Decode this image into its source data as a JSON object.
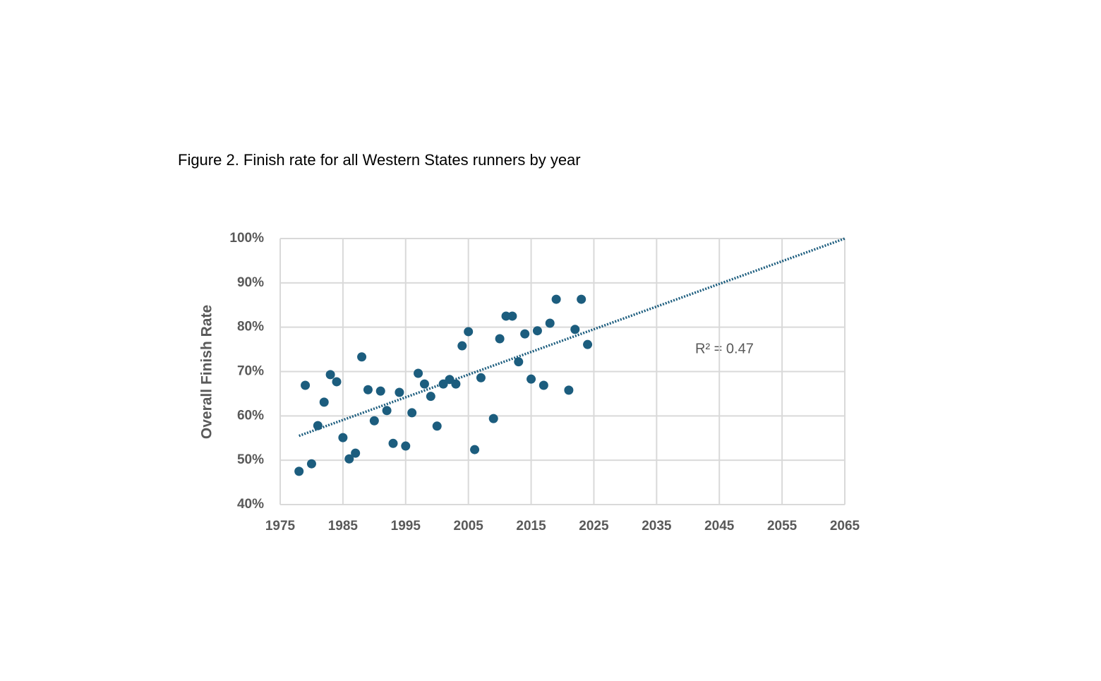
{
  "chart_data": {
    "type": "scatter",
    "title": "Figure 2. Finish rate for all Western States runners by year",
    "y_label": "Overall Finish Rate",
    "annotation": "R² = 0.47",
    "color": "#1c5d7e",
    "grid": true,
    "xlim": [
      1975,
      2065
    ],
    "xticks": [
      1975,
      1985,
      1995,
      2005,
      2015,
      2025,
      2035,
      2045,
      2055,
      2065
    ],
    "ylim": [
      40,
      100
    ],
    "yticks": [
      {
        "value": 40,
        "label": "40%"
      },
      {
        "value": 50,
        "label": "50%"
      },
      {
        "value": 60,
        "label": "60%"
      },
      {
        "value": 70,
        "label": "70%"
      },
      {
        "value": 80,
        "label": "80%"
      },
      {
        "value": 90,
        "label": "90%"
      },
      {
        "value": 100,
        "label": "100%"
      }
    ],
    "x": [
      1978,
      1979,
      1980,
      1981,
      1982,
      1983,
      1984,
      1985,
      1986,
      1987,
      1988,
      1989,
      1990,
      1991,
      1992,
      1993,
      1994,
      1995,
      1996,
      1997,
      1998,
      1999,
      2000,
      2001,
      2002,
      2003,
      2004,
      2005,
      2006,
      2007,
      2009,
      2010,
      2011,
      2012,
      2013,
      2014,
      2015,
      2016,
      2017,
      2018,
      2019,
      2021,
      2022,
      2023,
      2024
    ],
    "values": [
      47.5,
      66.9,
      49.2,
      57.8,
      63.1,
      69.3,
      67.7,
      55.1,
      50.3,
      51.6,
      73.3,
      65.9,
      58.9,
      65.6,
      61.2,
      53.8,
      65.3,
      53.2,
      60.7,
      69.6,
      67.2,
      64.4,
      57.7,
      67.2,
      68.2,
      67.2,
      75.8,
      79.0,
      52.4,
      68.6,
      59.4,
      77.4,
      82.5,
      82.5,
      72.2,
      78.5,
      68.3,
      79.2,
      66.9,
      80.9,
      86.3,
      65.8,
      79.5,
      86.3,
      76.1
    ],
    "trendline": {
      "x": [
        1978,
        2065
      ],
      "values": [
        55.5,
        100
      ]
    }
  }
}
